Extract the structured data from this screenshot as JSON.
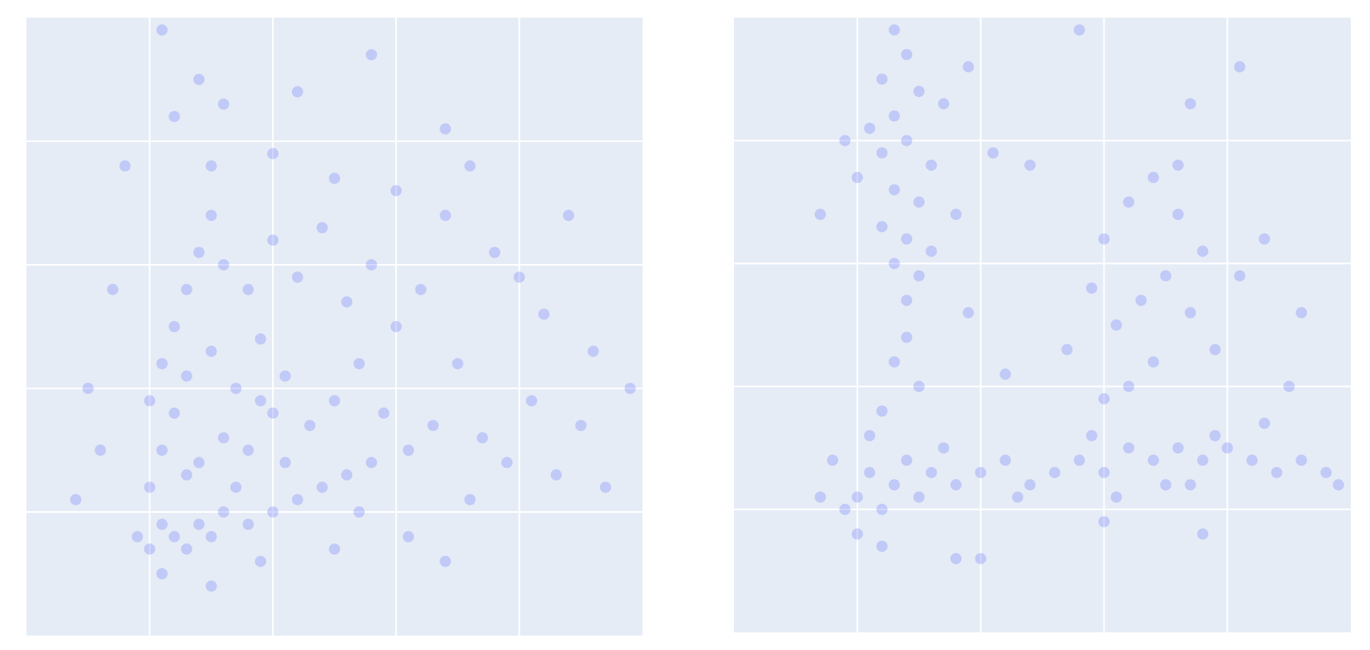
{
  "chart_data": [
    {
      "type": "scatter",
      "color": "#636efa",
      "opacity": 0.28,
      "plot_bgcolor": "#e5ecf6",
      "grid": true,
      "xlim": [
        0,
        5
      ],
      "ylim": [
        0,
        5
      ],
      "xticks": [
        1,
        2,
        3,
        4
      ],
      "yticks": [
        1,
        2,
        3,
        4
      ],
      "x": [
        0.9,
        1.0,
        1.1,
        1.2,
        1.3,
        1.4,
        1.5,
        1.6,
        1.8,
        2.0,
        2.2,
        2.4,
        2.6,
        2.8,
        1.0,
        1.1,
        1.2,
        1.3,
        1.2,
        1.3,
        1.4,
        1.5,
        1.1,
        1.0,
        1.4,
        1.6,
        1.8,
        2.0,
        1.7,
        1.5,
        1.9,
        2.1,
        2.3,
        2.5,
        2.7,
        2.9,
        3.1,
        3.3,
        3.0,
        2.6,
        2.2,
        1.8,
        1.6,
        2.0,
        2.4,
        2.8,
        3.2,
        3.5,
        3.7,
        3.9,
        4.1,
        4.3,
        4.5,
        4.7,
        4.9,
        4.6,
        4.2,
        3.8,
        3.4,
        3.0,
        2.5,
        2.0,
        1.5,
        1.2,
        1.4,
        1.1,
        1.6,
        2.2,
        2.8,
        3.4,
        0.7,
        0.5,
        0.4,
        0.6,
        3.1,
        3.4,
        2.5,
        1.9,
        1.1,
        1.5,
        4.0,
        4.4,
        3.6,
        0.8,
        2.7,
        3.6,
        1.3,
        1.7,
        2.1,
        1.9
      ],
      "values": [
        0.8,
        0.7,
        0.9,
        0.8,
        0.7,
        0.9,
        0.8,
        1.0,
        0.9,
        1.0,
        1.1,
        1.2,
        1.3,
        1.4,
        1.2,
        1.5,
        1.8,
        2.1,
        2.5,
        2.8,
        3.1,
        3.4,
        2.2,
        1.9,
        1.4,
        1.6,
        1.5,
        1.8,
        2.0,
        2.3,
        2.4,
        2.1,
        1.7,
        1.9,
        2.2,
        1.8,
        1.5,
        1.7,
        2.5,
        2.7,
        2.9,
        2.8,
        3.0,
        3.2,
        3.3,
        3.0,
        2.8,
        2.2,
        1.6,
        1.4,
        1.9,
        1.3,
        1.7,
        1.2,
        2.0,
        2.3,
        2.6,
        3.1,
        3.4,
        3.6,
        3.7,
        3.9,
        3.8,
        4.2,
        4.5,
        4.9,
        4.3,
        4.4,
        4.7,
        4.1,
        2.8,
        2.0,
        1.1,
        1.5,
        0.8,
        0.6,
        0.7,
        0.6,
        0.5,
        0.4,
        2.9,
        3.4,
        3.8,
        3.8,
        1.0,
        1.1,
        1.3,
        1.2,
        1.4,
        1.9
      ]
    },
    {
      "type": "scatter",
      "color": "#636efa",
      "opacity": 0.28,
      "plot_bgcolor": "#e5ecf6",
      "grid": true,
      "xlim": [
        0,
        5
      ],
      "ylim": [
        0,
        5
      ],
      "xticks": [
        1,
        2,
        3,
        4
      ],
      "yticks": [
        1,
        2,
        3,
        4
      ],
      "x": [
        1.3,
        1.4,
        1.2,
        1.5,
        1.3,
        1.4,
        1.2,
        1.6,
        1.3,
        1.5,
        1.2,
        1.4,
        1.3,
        1.5,
        1.4,
        1.1,
        1.7,
        1.6,
        1.0,
        1.8,
        1.4,
        1.3,
        1.5,
        1.2,
        0.7,
        0.9,
        1.9,
        2.1,
        1.0,
        1.1,
        1.2,
        1.3,
        1.4,
        1.5,
        1.6,
        1.7,
        1.1,
        0.9,
        1.0,
        1.8,
        0.8,
        1.2,
        2.0,
        2.2,
        2.4,
        2.6,
        2.8,
        3.0,
        3.2,
        3.4,
        3.6,
        3.8,
        4.0,
        4.2,
        4.4,
        4.6,
        4.8,
        3.1,
        3.5,
        3.9,
        2.9,
        4.3,
        2.3,
        3.7,
        3.0,
        3.2,
        3.4,
        3.6,
        3.8,
        3.5,
        3.3,
        3.1,
        3.7,
        3.9,
        3.4,
        2.9,
        4.1,
        3.6,
        3.2,
        2.7,
        4.3,
        3.0,
        2.4,
        1.9,
        2.2,
        4.6,
        4.9,
        1.8,
        3.0,
        3.8,
        2.0,
        0.7,
        4.1,
        2.8,
        3.7,
        4.5
      ],
      "values": [
        4.9,
        4.7,
        4.5,
        4.4,
        4.2,
        4.0,
        3.9,
        3.8,
        3.6,
        3.5,
        3.3,
        3.2,
        3.0,
        2.9,
        2.7,
        4.1,
        4.3,
        3.1,
        3.7,
        3.4,
        2.4,
        2.2,
        2.0,
        1.8,
        3.4,
        4.0,
        4.6,
        3.9,
        1.1,
        1.3,
        1.0,
        1.2,
        1.4,
        1.1,
        1.3,
        1.5,
        1.6,
        1.0,
        0.8,
        1.2,
        1.4,
        0.7,
        1.3,
        1.4,
        1.2,
        1.3,
        1.4,
        1.3,
        1.5,
        1.4,
        1.5,
        1.4,
        1.5,
        1.4,
        1.3,
        1.4,
        1.3,
        1.1,
        1.2,
        1.6,
        1.6,
        1.7,
        1.1,
        1.2,
        3.2,
        3.5,
        3.7,
        3.4,
        3.1,
        2.9,
        2.7,
        2.5,
        2.6,
        2.3,
        2.2,
        2.8,
        2.9,
        3.8,
        2.0,
        2.3,
        3.2,
        1.9,
        3.8,
        2.6,
        2.1,
        2.6,
        1.2,
        0.6,
        0.9,
        0.8,
        0.6,
        1.1,
        4.6,
        4.9,
        4.3,
        2.0
      ]
    }
  ]
}
